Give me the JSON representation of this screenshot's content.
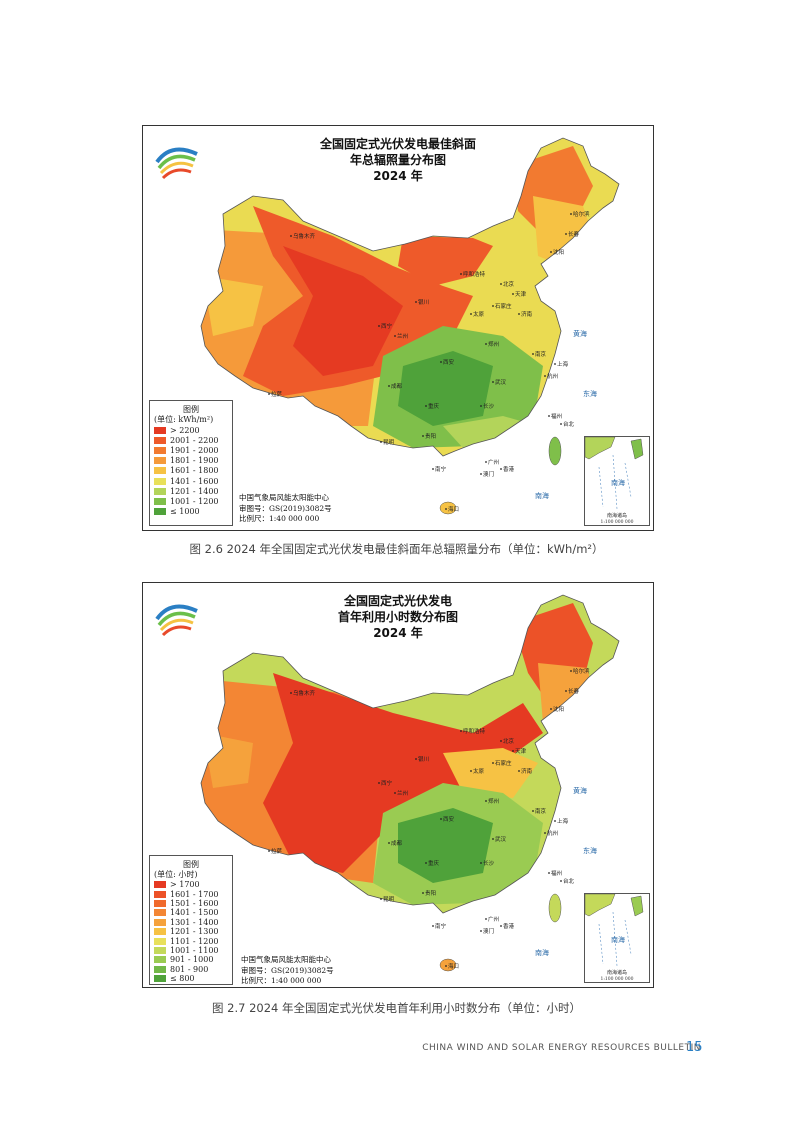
{
  "figures": [
    {
      "map_title_lines": [
        "全国固定式光伏发电最佳斜面",
        "年总辐照量分布图",
        "2024 年"
      ],
      "legend": {
        "title": "图例",
        "unit": "(单位: kWh/m²)",
        "items": [
          {
            "label": "> 2200",
            "color": "#e53a22"
          },
          {
            "label": "2001 - 2200",
            "color": "#ee5a2a"
          },
          {
            "label": "1901 - 2000",
            "color": "#f27a30"
          },
          {
            "label": "1801 - 1900",
            "color": "#f59a3a"
          },
          {
            "label": "1601 - 1800",
            "color": "#f6c244"
          },
          {
            "label": "1401 - 1600",
            "color": "#e8e05a"
          },
          {
            "label": "1201 - 1400",
            "color": "#b3d45a"
          },
          {
            "label": "1001 - 1200",
            "color": "#7fbf4a"
          },
          {
            "label": "≤ 1000",
            "color": "#4fa23a"
          }
        ]
      },
      "credits": [
        "中国气象局风能太阳能中心",
        "审图号：GS(2019)3082号",
        "比例尺：1:40 000 000"
      ],
      "caption": "图 2.6   2024 年全国固定式光伏发电最佳斜面年总辐照量分布（单位：kWh/m²）"
    },
    {
      "map_title_lines": [
        "全国固定式光伏发电",
        "首年利用小时数分布图",
        "2024 年"
      ],
      "legend": {
        "title": "图例",
        "unit": "(单位: 小时)",
        "items": [
          {
            "label": "> 1700",
            "color": "#e53a22"
          },
          {
            "label": "1601 - 1700",
            "color": "#ec5228"
          },
          {
            "label": "1501 - 1600",
            "color": "#f06a2c"
          },
          {
            "label": "1401 - 1500",
            "color": "#f38634"
          },
          {
            "label": "1301 - 1400",
            "color": "#f5a23c"
          },
          {
            "label": "1201 - 1300",
            "color": "#f6c244"
          },
          {
            "label": "1101 - 1200",
            "color": "#e8e05a"
          },
          {
            "label": "1001 - 1100",
            "color": "#c4d95a"
          },
          {
            "label": "901 - 1000",
            "color": "#9acb52"
          },
          {
            "label": "801 - 900",
            "color": "#72b848"
          },
          {
            "label": "≤ 800",
            "color": "#4fa23a"
          }
        ]
      },
      "credits": [
        "中国气象局风能太阳能中心",
        "审图号：GS(2019)3082号",
        "比例尺：1:40 000 000"
      ],
      "caption": "图 2.7   2024 年全国固定式光伏发电首年利用小时数分布（单位：小时）"
    }
  ],
  "map_labels": [
    "乌鲁木齐",
    "拉萨",
    "西宁",
    "兰州",
    "银川",
    "呼和浩特",
    "北京",
    "天津",
    "太原",
    "石家庄",
    "济南",
    "郑州",
    "西安",
    "成都",
    "重庆",
    "贵阳",
    "昆明",
    "南宁",
    "长沙",
    "武汉",
    "南京",
    "上海",
    "杭州",
    "福州",
    "广州",
    "香港",
    "澳门",
    "台北",
    "海口",
    "沈阳",
    "长春",
    "哈尔滨",
    "南海",
    "东海",
    "黄海"
  ],
  "inset": {
    "label": "南海诸岛",
    "scale": "1:100 000 000",
    "sea": "南海"
  },
  "footer": {
    "text": "CHINA WIND AND SOLAR ENERGY RESOURCES BULLETIN",
    "page": "15"
  }
}
